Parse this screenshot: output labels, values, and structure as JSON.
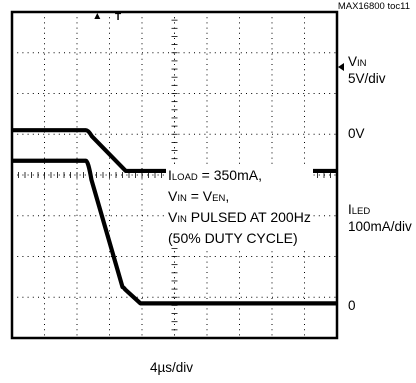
{
  "header": {
    "figure_id": "MAX16800 toc11"
  },
  "annotation": {
    "line1_main": "I",
    "line1_sub": "LOAD",
    "line1_rest": " = 350mA,",
    "line2_main": "V",
    "line2_sub": "IN",
    "line2_mid": " = V",
    "line2_sub2": "EN",
    "line2_rest": ",",
    "line3_main": "V",
    "line3_sub": "IN",
    "line3_rest": " PULSED AT 200Hz",
    "line4": "(50% DUTY CYCLE)"
  },
  "right_labels": {
    "vin_main": "V",
    "vin_sub": "IN",
    "vin_scale": "5V/div",
    "vin_zero": "0V",
    "iled_main": "I",
    "iled_sub": "LED",
    "iled_scale": "100mA/div",
    "iled_zero": "0"
  },
  "bottom": {
    "time_scale": "4µs/div"
  },
  "trigger_marker": "T",
  "chart_data": {
    "type": "line",
    "x_unit": "µs",
    "x_scale_per_div": 4,
    "divisions": {
      "x": 10,
      "y": 8
    },
    "xlim": [
      0,
      40
    ],
    "grid": true,
    "series": [
      {
        "name": "VIN",
        "scale_per_div": 5,
        "unit": "V",
        "ground_div": 4.1,
        "points": [
          [
            0,
            5.0
          ],
          [
            9.1,
            5.0
          ],
          [
            14.0,
            0.0
          ],
          [
            40,
            0.0
          ]
        ]
      },
      {
        "name": "ILED",
        "scale_per_div": 100,
        "unit": "mA",
        "ground_div": 0.85,
        "points": [
          [
            0,
            350
          ],
          [
            9.1,
            350
          ],
          [
            13.6,
            40
          ],
          [
            15.8,
            0
          ],
          [
            40,
            0
          ]
        ]
      }
    ]
  }
}
